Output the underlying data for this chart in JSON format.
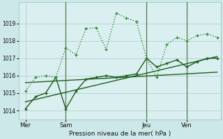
{
  "background_color": "#cce8e8",
  "plot_bg_color": "#daf0f0",
  "grid_color": "#aacccc",
  "line_color_dark": "#1a5c1a",
  "line_color_dotted": "#2e8b2e",
  "xlabel": "Pression niveau de la mer( hPa )",
  "ylim": [
    1013.5,
    1020.2
  ],
  "yticks": [
    1014,
    1015,
    1016,
    1017,
    1018,
    1019
  ],
  "xtick_labels": [
    "Mer",
    "Sam",
    "Jeu",
    "Ven"
  ],
  "xtick_positions": [
    0,
    24,
    72,
    96
  ],
  "xlim": [
    -4,
    116
  ],
  "vline_positions": [
    24,
    72,
    96
  ],
  "series_dotted_x": [
    0,
    6,
    12,
    18,
    24,
    30,
    36,
    42,
    48,
    54,
    60,
    66,
    72,
    78,
    84,
    90,
    96,
    102,
    108,
    114
  ],
  "series_dotted_y": [
    1015.1,
    1015.9,
    1016.0,
    1015.9,
    1017.6,
    1017.2,
    1018.7,
    1018.75,
    1017.5,
    1019.6,
    1019.3,
    1019.1,
    1017.0,
    1015.9,
    1017.8,
    1018.2,
    1018.0,
    1018.3,
    1018.4,
    1018.2
  ],
  "series_solid_x": [
    0,
    6,
    12,
    18,
    24,
    30,
    36,
    42,
    48,
    54,
    60,
    66,
    72,
    78,
    84,
    90,
    96,
    102,
    108,
    114
  ],
  "series_solid_y": [
    1014.1,
    1014.8,
    1015.0,
    1015.9,
    1014.1,
    1015.1,
    1015.8,
    1015.9,
    1016.0,
    1015.9,
    1016.0,
    1016.1,
    1017.0,
    1016.5,
    1016.7,
    1016.9,
    1016.5,
    1016.8,
    1017.0,
    1017.0
  ],
  "trend1_x": [
    0,
    114
  ],
  "trend1_y": [
    1015.6,
    1016.2
  ],
  "trend2_x": [
    0,
    114
  ],
  "trend2_y": [
    1014.5,
    1017.1
  ]
}
